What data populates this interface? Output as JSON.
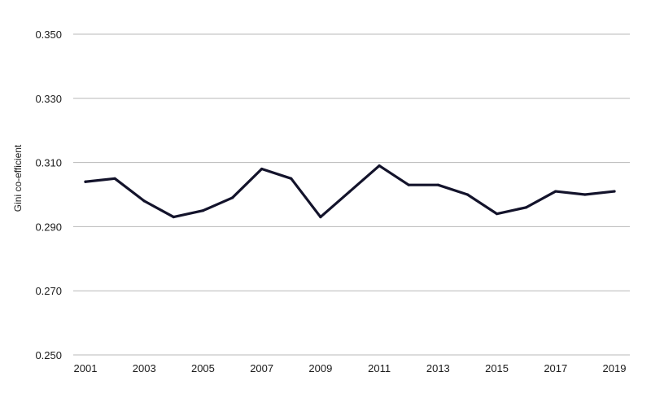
{
  "chart_data": {
    "type": "line",
    "title": "",
    "xlabel": "",
    "ylabel": "Gini co-efficient",
    "ylim": [
      0.25,
      0.35
    ],
    "xlim": [
      2001,
      2019
    ],
    "yticks": [
      "0.250",
      "0.270",
      "0.290",
      "0.310",
      "0.330",
      "0.350"
    ],
    "xticks": [
      "2001",
      "2003",
      "2005",
      "2007",
      "2009",
      "2011",
      "2013",
      "2015",
      "2017",
      "2019"
    ],
    "grid": "horizontal",
    "legend": "none",
    "line_color": "#13132b",
    "grid_color": "#b8b8b8",
    "series": [
      {
        "x": [
          2001,
          2002,
          2003,
          2004,
          2005,
          2006,
          2007,
          2008,
          2009,
          2010,
          2011,
          2012,
          2013,
          2014,
          2015,
          2016,
          2017,
          2018,
          2019
        ],
        "values": [
          0.304,
          0.305,
          0.298,
          0.293,
          0.295,
          0.299,
          0.308,
          0.305,
          0.293,
          0.301,
          0.309,
          0.303,
          0.303,
          0.3,
          0.294,
          0.296,
          0.301,
          0.3,
          0.301
        ]
      }
    ]
  }
}
